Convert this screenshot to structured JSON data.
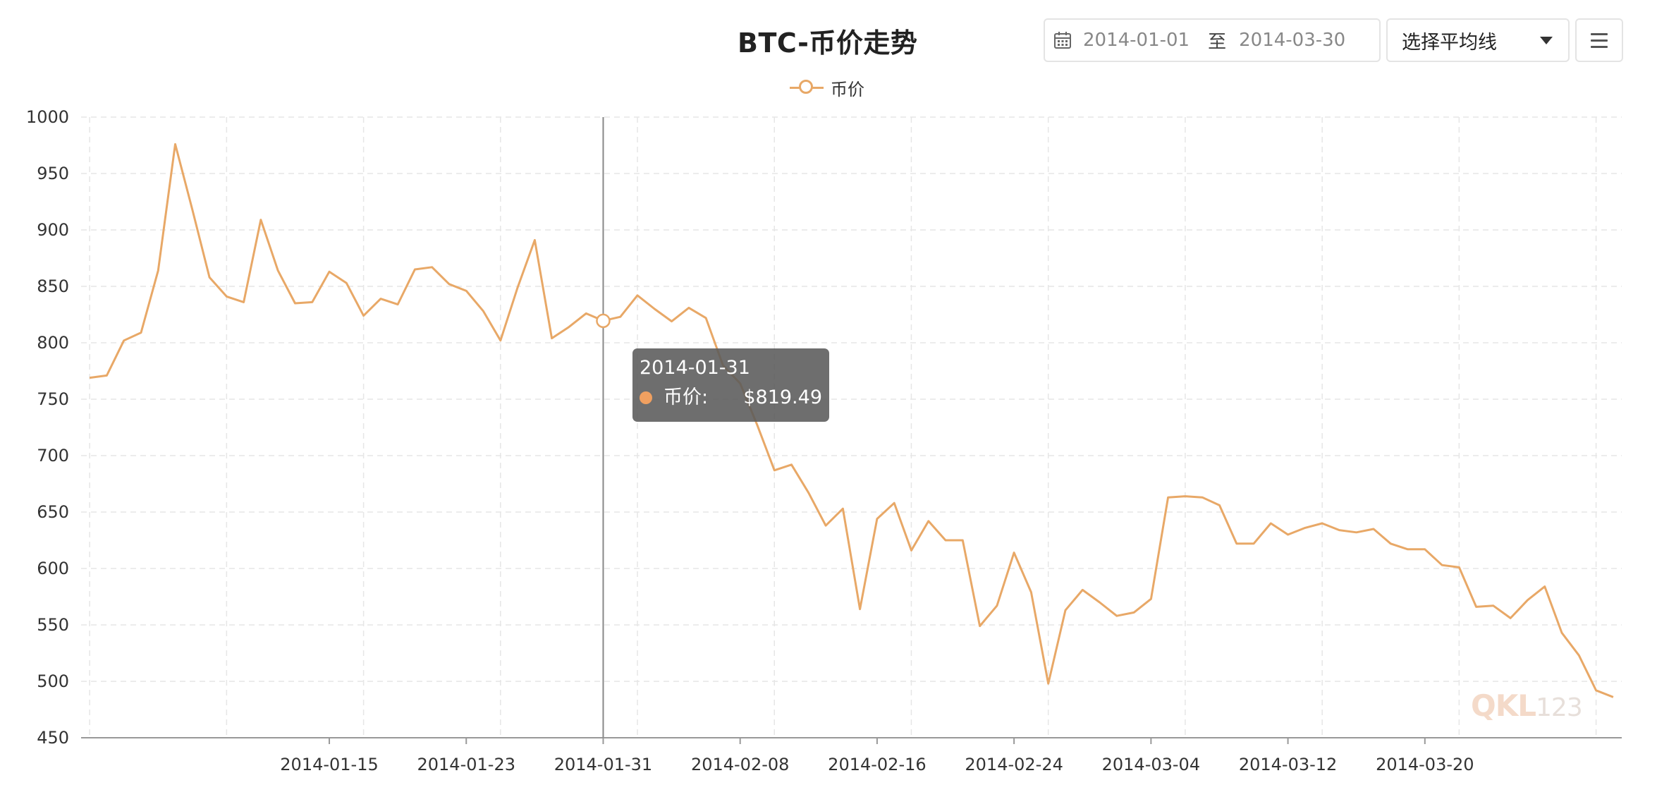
{
  "title": "BTC-币价走势",
  "legend": {
    "label": "币价"
  },
  "date_range": {
    "start": "2014-01-01",
    "separator": "至",
    "end": "2014-03-30"
  },
  "select": {
    "label": "选择平均线"
  },
  "tooltip": {
    "date": "2014-01-31",
    "name": "币价:",
    "value": "$819.49",
    "dot_color": "#f0a060"
  },
  "watermark": {
    "brand": "QKL",
    "suffix": "123"
  },
  "colors": {
    "line": "#e8a867",
    "grid": "#e6e6e6",
    "axis": "#999999"
  },
  "chart_data": {
    "type": "line",
    "title": "BTC-币价走势",
    "xlabel": "",
    "ylabel": "",
    "ylim": [
      450,
      1000
    ],
    "yticks": [
      450,
      500,
      550,
      600,
      650,
      700,
      750,
      800,
      850,
      900,
      950,
      1000
    ],
    "xtick_labels": [
      "2014-01-15",
      "2014-01-23",
      "2014-01-31",
      "2014-02-08",
      "2014-02-16",
      "2014-02-24",
      "2014-03-04",
      "2014-03-12",
      "2014-03-20"
    ],
    "x_start": "2014-01-01",
    "x_end": "2014-03-30",
    "grid": true,
    "legend_position": "top-center",
    "series": [
      {
        "name": "币价",
        "color": "#e8a867",
        "values": [
          769,
          771,
          802,
          809,
          864,
          976,
          918,
          858,
          841,
          836,
          909,
          864,
          835,
          836,
          863,
          853,
          824,
          839,
          834,
          865,
          867,
          852,
          846,
          828,
          802,
          849,
          891,
          804,
          814,
          826,
          819.49,
          823,
          842,
          830,
          819,
          831,
          822,
          780,
          764,
          727,
          687,
          692,
          667,
          638,
          653,
          564,
          644,
          658,
          616,
          642,
          625,
          625,
          549,
          567,
          614,
          579,
          498,
          563,
          581,
          570,
          558,
          561,
          573,
          663,
          664,
          663,
          656,
          622,
          622,
          640,
          630,
          636,
          640,
          634,
          632,
          635,
          622,
          617,
          617,
          603,
          601,
          566,
          567,
          556,
          572,
          584,
          543,
          523,
          492,
          486
        ]
      }
    ]
  }
}
